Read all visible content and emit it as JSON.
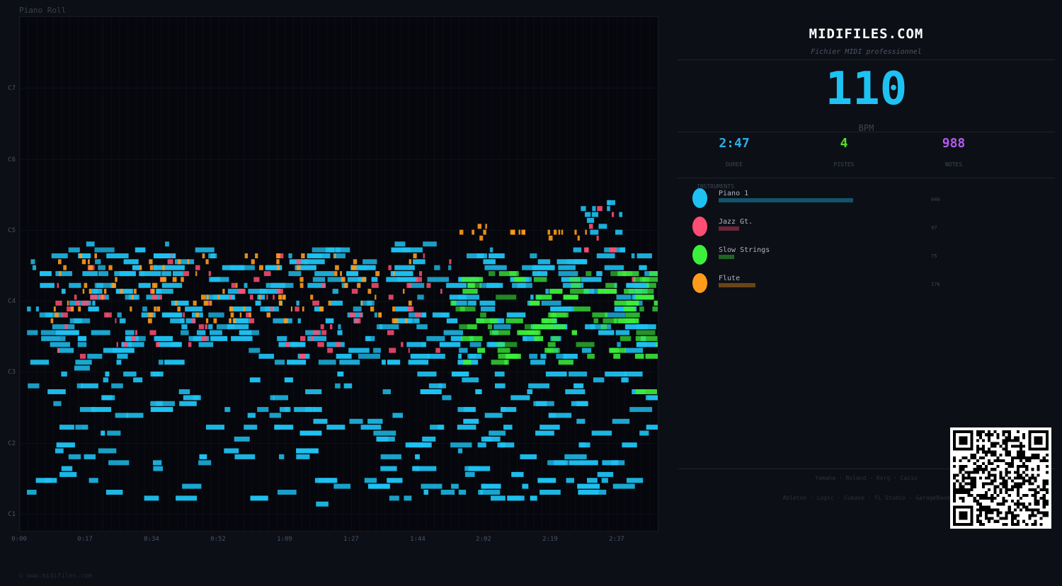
{
  "roll": {
    "title": "Piano Roll",
    "octave_labels": [
      "C7",
      "C6",
      "C5",
      "C4",
      "C3",
      "C2",
      "C1"
    ],
    "time_labels": [
      "0:00",
      "0:17",
      "0:34",
      "0:52",
      "1:09",
      "1:27",
      "1:44",
      "2:02",
      "2:19",
      "2:37"
    ],
    "copyright": "© www.midifiles.com"
  },
  "colors": {
    "piano": "#1ec2f2",
    "guitar": "#ff4d73",
    "strings": "#3bf03a",
    "flute": "#ff9b1a"
  },
  "panel": {
    "site": "MIDIFILES.COM",
    "subtitle": "Fichier MIDI professionnel",
    "bpm": "110",
    "bpm_label": "BPM",
    "stats": [
      {
        "value": "2:47",
        "label": "DUREE",
        "color": "#2aaee6"
      },
      {
        "value": "4",
        "label": "PISTES",
        "color": "#55e02c"
      },
      {
        "value": "988",
        "label": "NOTES",
        "color": "#b25af0"
      }
    ],
    "instruments_label": "INSTRUMENTS",
    "instruments": [
      {
        "name": "Piano 1",
        "count": "640",
        "share": 0.6478,
        "color": "#1ec2f2"
      },
      {
        "name": "Jazz Gt.",
        "count": "97",
        "share": 0.0982,
        "color": "#ff4d73"
      },
      {
        "name": "Slow Strings",
        "count": "75",
        "share": 0.0759,
        "color": "#3bf03a"
      },
      {
        "name": "Flute",
        "count": "176",
        "share": 0.1781,
        "color": "#ff9b1a"
      }
    ],
    "brands_line1": "Yamaha · Roland · Korg · Casio",
    "brands_line2": "Ableton · Logic · Cubase · FL Studio · GarageBand"
  }
}
